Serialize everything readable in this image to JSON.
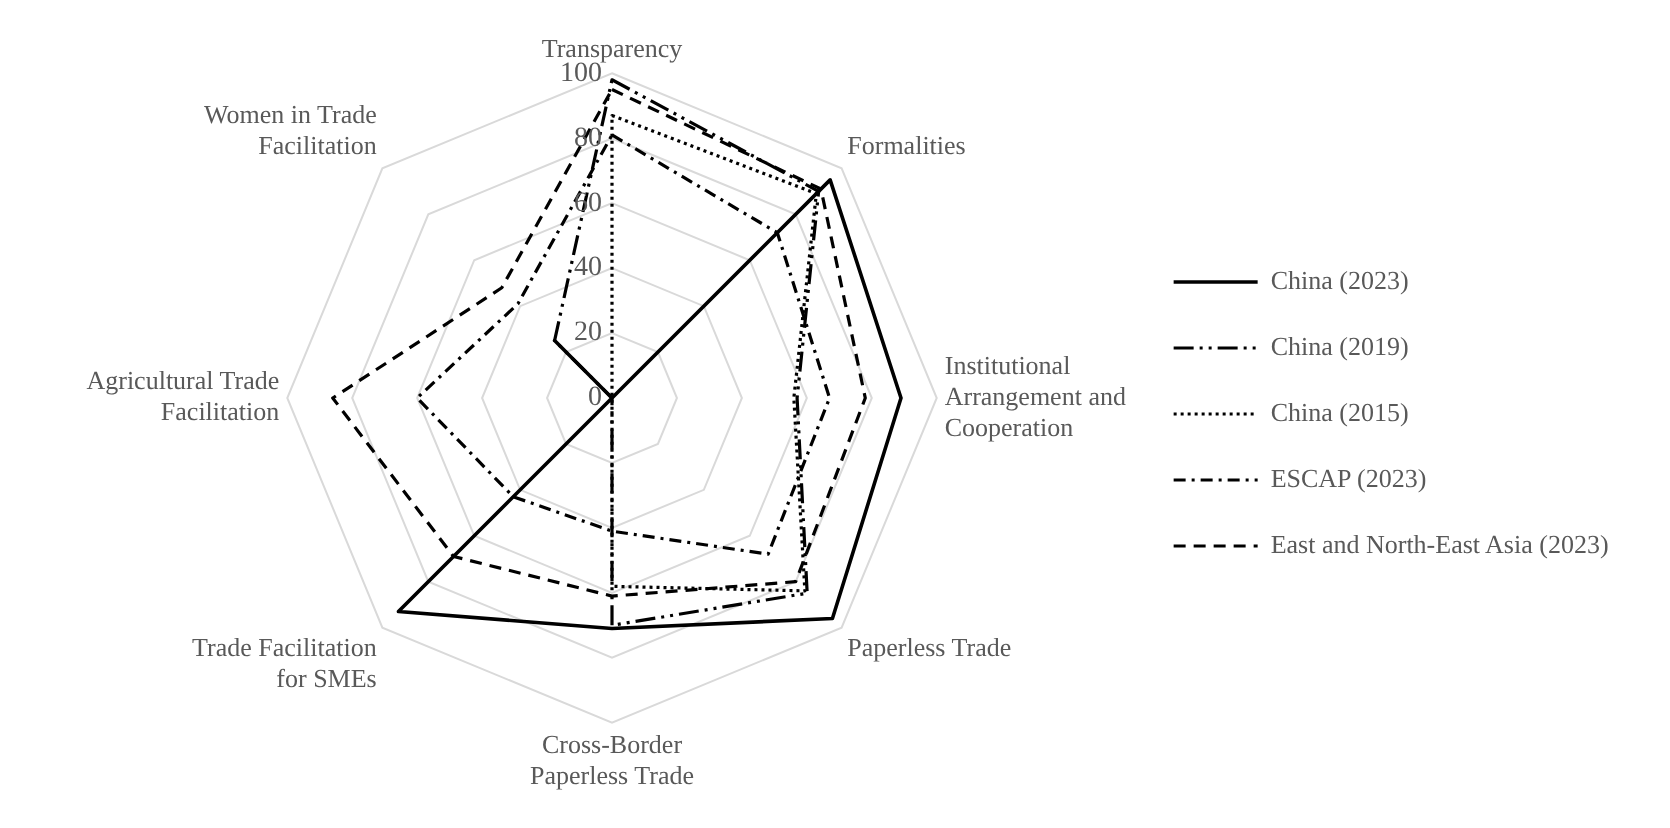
{
  "chart_data": {
    "type": "radar",
    "categories": [
      "Transparency",
      "Formalities",
      "Institutional Arrangement and Cooperation",
      "Paperless Trade",
      "Cross-Border Paperless Trade",
      "Trade Facilitation for SMEs",
      "Agricultural Trade Facilitation",
      "Women in Trade Facilitation"
    ],
    "series": [
      {
        "name": "China (2023)",
        "color": "#000000",
        "line_style": "solid",
        "values": [
          0,
          95,
          89,
          96,
          71,
          93,
          0,
          25
        ]
      },
      {
        "name": "China (2019)",
        "color": "#000000",
        "line_style": "longdashdotdot",
        "values": [
          98,
          90,
          57,
          85,
          70,
          0,
          0,
          25
        ]
      },
      {
        "name": "China (2015)",
        "color": "#000000",
        "line_style": "dotted",
        "values": [
          87,
          89,
          56,
          84,
          58,
          0,
          0,
          0
        ]
      },
      {
        "name": "ESCAP (2023)",
        "color": "#000000",
        "line_style": "dashdot",
        "values": [
          81,
          72,
          67,
          68,
          41,
          43,
          60,
          41
        ]
      },
      {
        "name": "East and North-East Asia (2023)",
        "color": "#000000",
        "line_style": "dashed",
        "values": [
          95,
          91,
          78,
          80,
          61,
          69,
          86,
          48
        ]
      }
    ],
    "ylim": [
      0,
      100
    ],
    "yticks": [
      0,
      20,
      40,
      60,
      80,
      100
    ],
    "grid": true,
    "legend": "right",
    "marker": "none"
  }
}
